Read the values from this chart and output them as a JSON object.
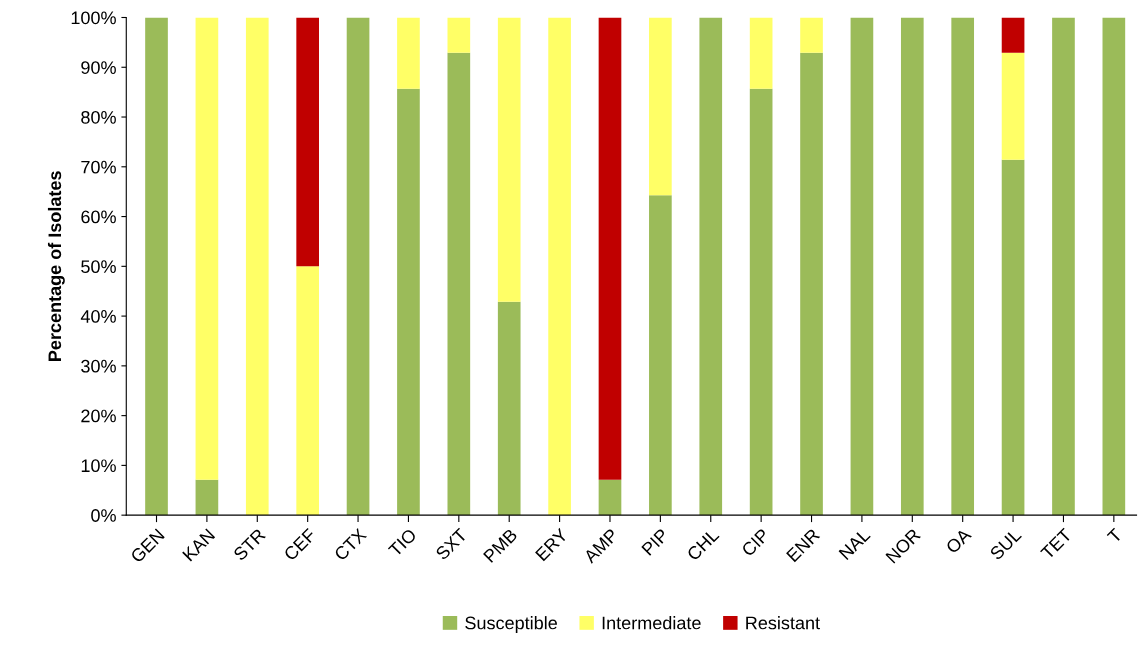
{
  "chart_data": {
    "type": "bar",
    "stacked": true,
    "ylabel": "Percentage of Isolates",
    "categories": [
      "GEN",
      "KAN",
      "STR",
      "CEF",
      "CTX",
      "TIO",
      "SXT",
      "PMB",
      "ERY",
      "AMP",
      "PIP",
      "CHL",
      "CIP",
      "ENR",
      "NAL",
      "NOR",
      "OA",
      "SUL",
      "TET",
      "T"
    ],
    "series": [
      {
        "name": "Susceptible",
        "color": "#9bbb59",
        "values": [
          100,
          7.1,
          0,
          0,
          100,
          85.7,
          92.9,
          42.9,
          0,
          7.1,
          64.3,
          100,
          85.7,
          92.9,
          100,
          100,
          100,
          71.4,
          100,
          100
        ]
      },
      {
        "name": "Intermediate",
        "color": "#ffff66",
        "values": [
          0,
          92.9,
          100,
          50,
          0,
          14.3,
          7.1,
          57.1,
          100,
          0,
          35.7,
          0,
          14.3,
          7.1,
          0,
          0,
          0,
          21.5,
          0,
          0
        ]
      },
      {
        "name": "Resistant",
        "color": "#c00000",
        "values": [
          0,
          0,
          0,
          50,
          0,
          0,
          0,
          0,
          0,
          92.9,
          0,
          0,
          0,
          0,
          0,
          0,
          0,
          7.1,
          0,
          0
        ]
      }
    ],
    "ylim": [
      0,
      100
    ],
    "yticks": [
      {
        "value": 0,
        "label": "0%"
      },
      {
        "value": 10,
        "label": "10%"
      },
      {
        "value": 20,
        "label": "20%"
      },
      {
        "value": 30,
        "label": "30%"
      },
      {
        "value": 40,
        "label": "40%"
      },
      {
        "value": 50,
        "label": "50%"
      },
      {
        "value": 60,
        "label": "60%"
      },
      {
        "value": 70,
        "label": "70%"
      },
      {
        "value": 80,
        "label": "80%"
      },
      {
        "value": 90,
        "label": "90%"
      },
      {
        "value": 100,
        "label": "100%"
      }
    ],
    "grid": false,
    "legend": "bottom"
  }
}
